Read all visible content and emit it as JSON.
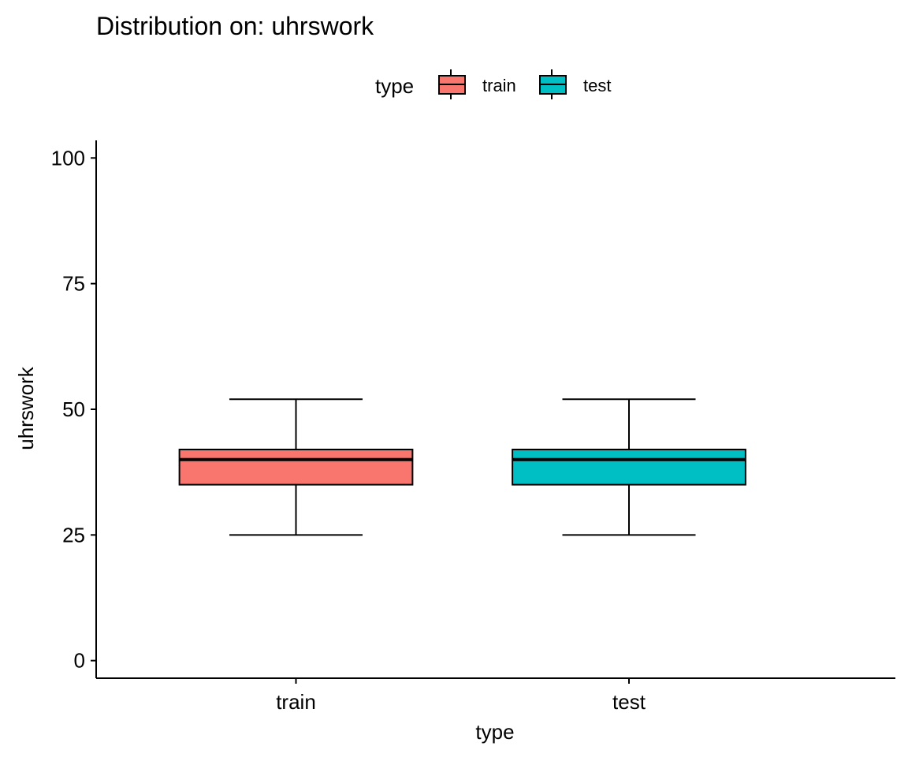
{
  "chart_data": {
    "type": "boxplot",
    "title": "Distribution on: uhrswork",
    "xlabel": "type",
    "ylabel": "uhrswork",
    "ylim": [
      -3.5,
      103.5
    ],
    "y_ticks": [
      0,
      25,
      50,
      75,
      100
    ],
    "y_tick_labels": [
      "0",
      "25",
      "50",
      "75",
      "100"
    ],
    "categories": [
      "train",
      "test"
    ],
    "grid": false,
    "legend": {
      "title": "type",
      "position": "top",
      "entries": [
        "train",
        "test"
      ]
    },
    "series": [
      {
        "name": "train",
        "color": "#F8766D",
        "min": 25,
        "q1": 35,
        "median": 40,
        "q3": 42,
        "max": 52
      },
      {
        "name": "test",
        "color": "#00BFC4",
        "min": 25,
        "q1": 35,
        "median": 40,
        "q3": 42,
        "max": 52
      }
    ]
  }
}
